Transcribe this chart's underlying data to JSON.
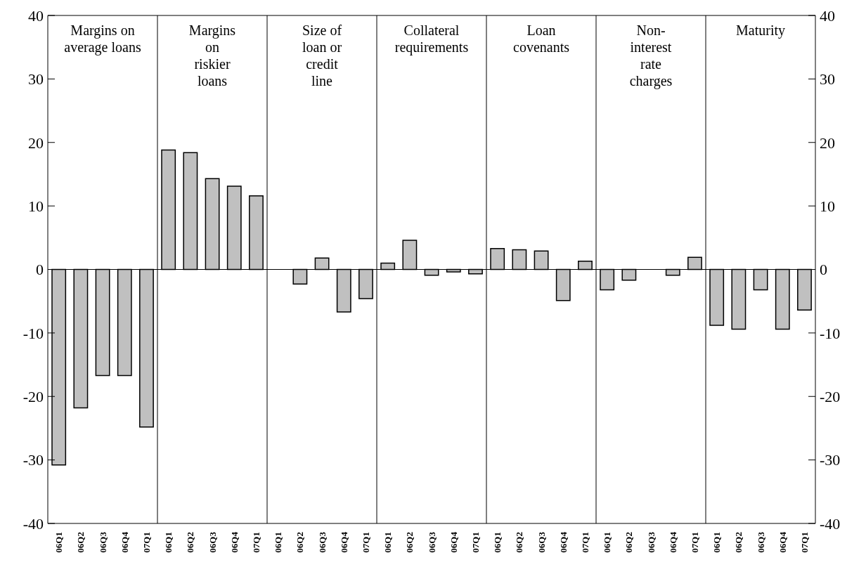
{
  "chart_data": {
    "type": "bar",
    "categories": [
      "06Q1",
      "06Q2",
      "06Q3",
      "06Q4",
      "07Q1",
      "06Q1",
      "06Q2",
      "06Q3",
      "06Q4",
      "07Q1",
      "06Q1",
      "06Q2",
      "06Q3",
      "06Q4",
      "07Q1",
      "06Q1",
      "06Q2",
      "06Q3",
      "06Q4",
      "07Q1",
      "06Q1",
      "06Q2",
      "06Q3",
      "06Q4",
      "07Q1",
      "06Q1",
      "06Q2",
      "06Q3",
      "06Q4",
      "07Q1",
      "06Q1",
      "06Q2",
      "06Q3",
      "06Q4",
      "07Q1"
    ],
    "values": [
      -30.8,
      -21.8,
      -16.7,
      -16.7,
      -24.8,
      18.8,
      18.4,
      14.3,
      13.1,
      11.6,
      0,
      -2.3,
      1.8,
      -6.7,
      -4.6,
      1.0,
      4.6,
      -0.9,
      -0.4,
      -0.7,
      3.3,
      3.1,
      2.9,
      -4.9,
      1.3,
      -3.2,
      -1.7,
      0,
      -0.9,
      1.9,
      -8.8,
      -9.4,
      -3.2,
      -9.4,
      -6.4
    ],
    "color": "#c0c0c0",
    "annotations": [
      "Margins on\naverage loans",
      "Margins\non\nriskier\nloans",
      "Size of\nloan or\ncredit\nline",
      "Collateral\nrequirements",
      "Loan\ncovenants",
      "Non-\ninterest\nrate\ncharges",
      "Maturity"
    ],
    "ylim": [
      -40,
      40
    ],
    "yticks": [
      -40,
      -30,
      -20,
      -10,
      0,
      10,
      20,
      30,
      40
    ],
    "y2lim": [
      -40,
      40
    ],
    "y2ticks": [
      -40,
      -30,
      -20,
      -10,
      0,
      10,
      20,
      30,
      40
    ],
    "tick_labels": true
  }
}
